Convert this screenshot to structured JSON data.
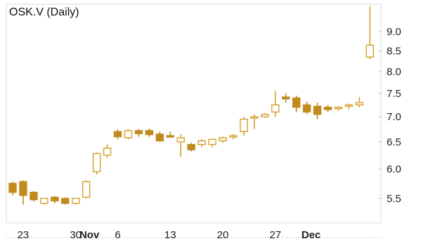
{
  "chart_data": {
    "type": "candlestick",
    "title": "OSK.V (Daily)",
    "colors": {
      "up": "#d4a02a",
      "down": "#c08a1e",
      "frame": "#d9d9d9",
      "axis_text": "#222222"
    },
    "y_scale": "log",
    "ylim": [
      5.15,
      9.7
    ],
    "y_ticks": [
      {
        "value": 9.0,
        "label": "9.0"
      },
      {
        "value": 8.5,
        "label": "8.5"
      },
      {
        "value": 8.0,
        "label": "8.0"
      },
      {
        "value": 7.5,
        "label": "7.5"
      },
      {
        "value": 7.0,
        "label": "7.0"
      },
      {
        "value": 6.5,
        "label": "6.5"
      },
      {
        "value": 6.0,
        "label": "6.0"
      },
      {
        "value": 5.5,
        "label": "5.5"
      }
    ],
    "x_ticks": [
      {
        "index": 1,
        "label": "23",
        "bold": false
      },
      {
        "index": 6,
        "label": "30",
        "bold": false
      },
      {
        "index": 7.3,
        "label": "Nov",
        "bold": true
      },
      {
        "index": 10,
        "label": "6",
        "bold": false
      },
      {
        "index": 15,
        "label": "13",
        "bold": false
      },
      {
        "index": 20,
        "label": "20",
        "bold": false
      },
      {
        "index": 25,
        "label": "27",
        "bold": false
      },
      {
        "index": 28.4,
        "label": "Dec",
        "bold": true
      }
    ],
    "candles": [
      {
        "o": 5.75,
        "h": 5.78,
        "l": 5.55,
        "c": 5.6
      },
      {
        "o": 5.78,
        "h": 5.8,
        "l": 5.4,
        "c": 5.55
      },
      {
        "o": 5.6,
        "h": 5.62,
        "l": 5.45,
        "c": 5.48
      },
      {
        "o": 5.42,
        "h": 5.5,
        "l": 5.4,
        "c": 5.5
      },
      {
        "o": 5.52,
        "h": 5.54,
        "l": 5.42,
        "c": 5.46
      },
      {
        "o": 5.5,
        "h": 5.52,
        "l": 5.4,
        "c": 5.42
      },
      {
        "o": 5.42,
        "h": 5.5,
        "l": 5.4,
        "c": 5.5
      },
      {
        "o": 5.52,
        "h": 5.8,
        "l": 5.5,
        "c": 5.78
      },
      {
        "o": 5.95,
        "h": 6.3,
        "l": 5.9,
        "c": 6.28
      },
      {
        "o": 6.25,
        "h": 6.45,
        "l": 6.2,
        "c": 6.38
      },
      {
        "o": 6.7,
        "h": 6.75,
        "l": 6.55,
        "c": 6.6
      },
      {
        "o": 6.58,
        "h": 6.75,
        "l": 6.55,
        "c": 6.72
      },
      {
        "o": 6.72,
        "h": 6.75,
        "l": 6.6,
        "c": 6.66
      },
      {
        "o": 6.72,
        "h": 6.76,
        "l": 6.6,
        "c": 6.64
      },
      {
        "o": 6.65,
        "h": 6.7,
        "l": 6.5,
        "c": 6.52
      },
      {
        "o": 6.62,
        "h": 6.7,
        "l": 6.58,
        "c": 6.6
      },
      {
        "o": 6.5,
        "h": 6.65,
        "l": 6.22,
        "c": 6.58
      },
      {
        "o": 6.45,
        "h": 6.48,
        "l": 6.32,
        "c": 6.35
      },
      {
        "o": 6.45,
        "h": 6.55,
        "l": 6.4,
        "c": 6.52
      },
      {
        "o": 6.45,
        "h": 6.55,
        "l": 6.4,
        "c": 6.55
      },
      {
        "o": 6.52,
        "h": 6.6,
        "l": 6.48,
        "c": 6.58
      },
      {
        "o": 6.6,
        "h": 6.65,
        "l": 6.55,
        "c": 6.62
      },
      {
        "o": 6.7,
        "h": 7.0,
        "l": 6.62,
        "c": 6.95
      },
      {
        "o": 6.98,
        "h": 7.05,
        "l": 6.75,
        "c": 7.0
      },
      {
        "o": 7.0,
        "h": 7.08,
        "l": 6.98,
        "c": 7.05
      },
      {
        "o": 7.1,
        "h": 7.55,
        "l": 7.0,
        "c": 7.25
      },
      {
        "o": 7.42,
        "h": 7.5,
        "l": 7.3,
        "c": 7.38
      },
      {
        "o": 7.4,
        "h": 7.45,
        "l": 7.1,
        "c": 7.2
      },
      {
        "o": 7.25,
        "h": 7.32,
        "l": 7.05,
        "c": 7.1
      },
      {
        "o": 7.22,
        "h": 7.3,
        "l": 6.95,
        "c": 7.05
      },
      {
        "o": 7.2,
        "h": 7.25,
        "l": 7.1,
        "c": 7.15
      },
      {
        "o": 7.18,
        "h": 7.22,
        "l": 7.12,
        "c": 7.2
      },
      {
        "o": 7.22,
        "h": 7.28,
        "l": 7.15,
        "c": 7.25
      },
      {
        "o": 7.25,
        "h": 7.42,
        "l": 7.2,
        "c": 7.3
      },
      {
        "o": 8.35,
        "h": 9.7,
        "l": 8.3,
        "c": 8.65
      }
    ]
  }
}
